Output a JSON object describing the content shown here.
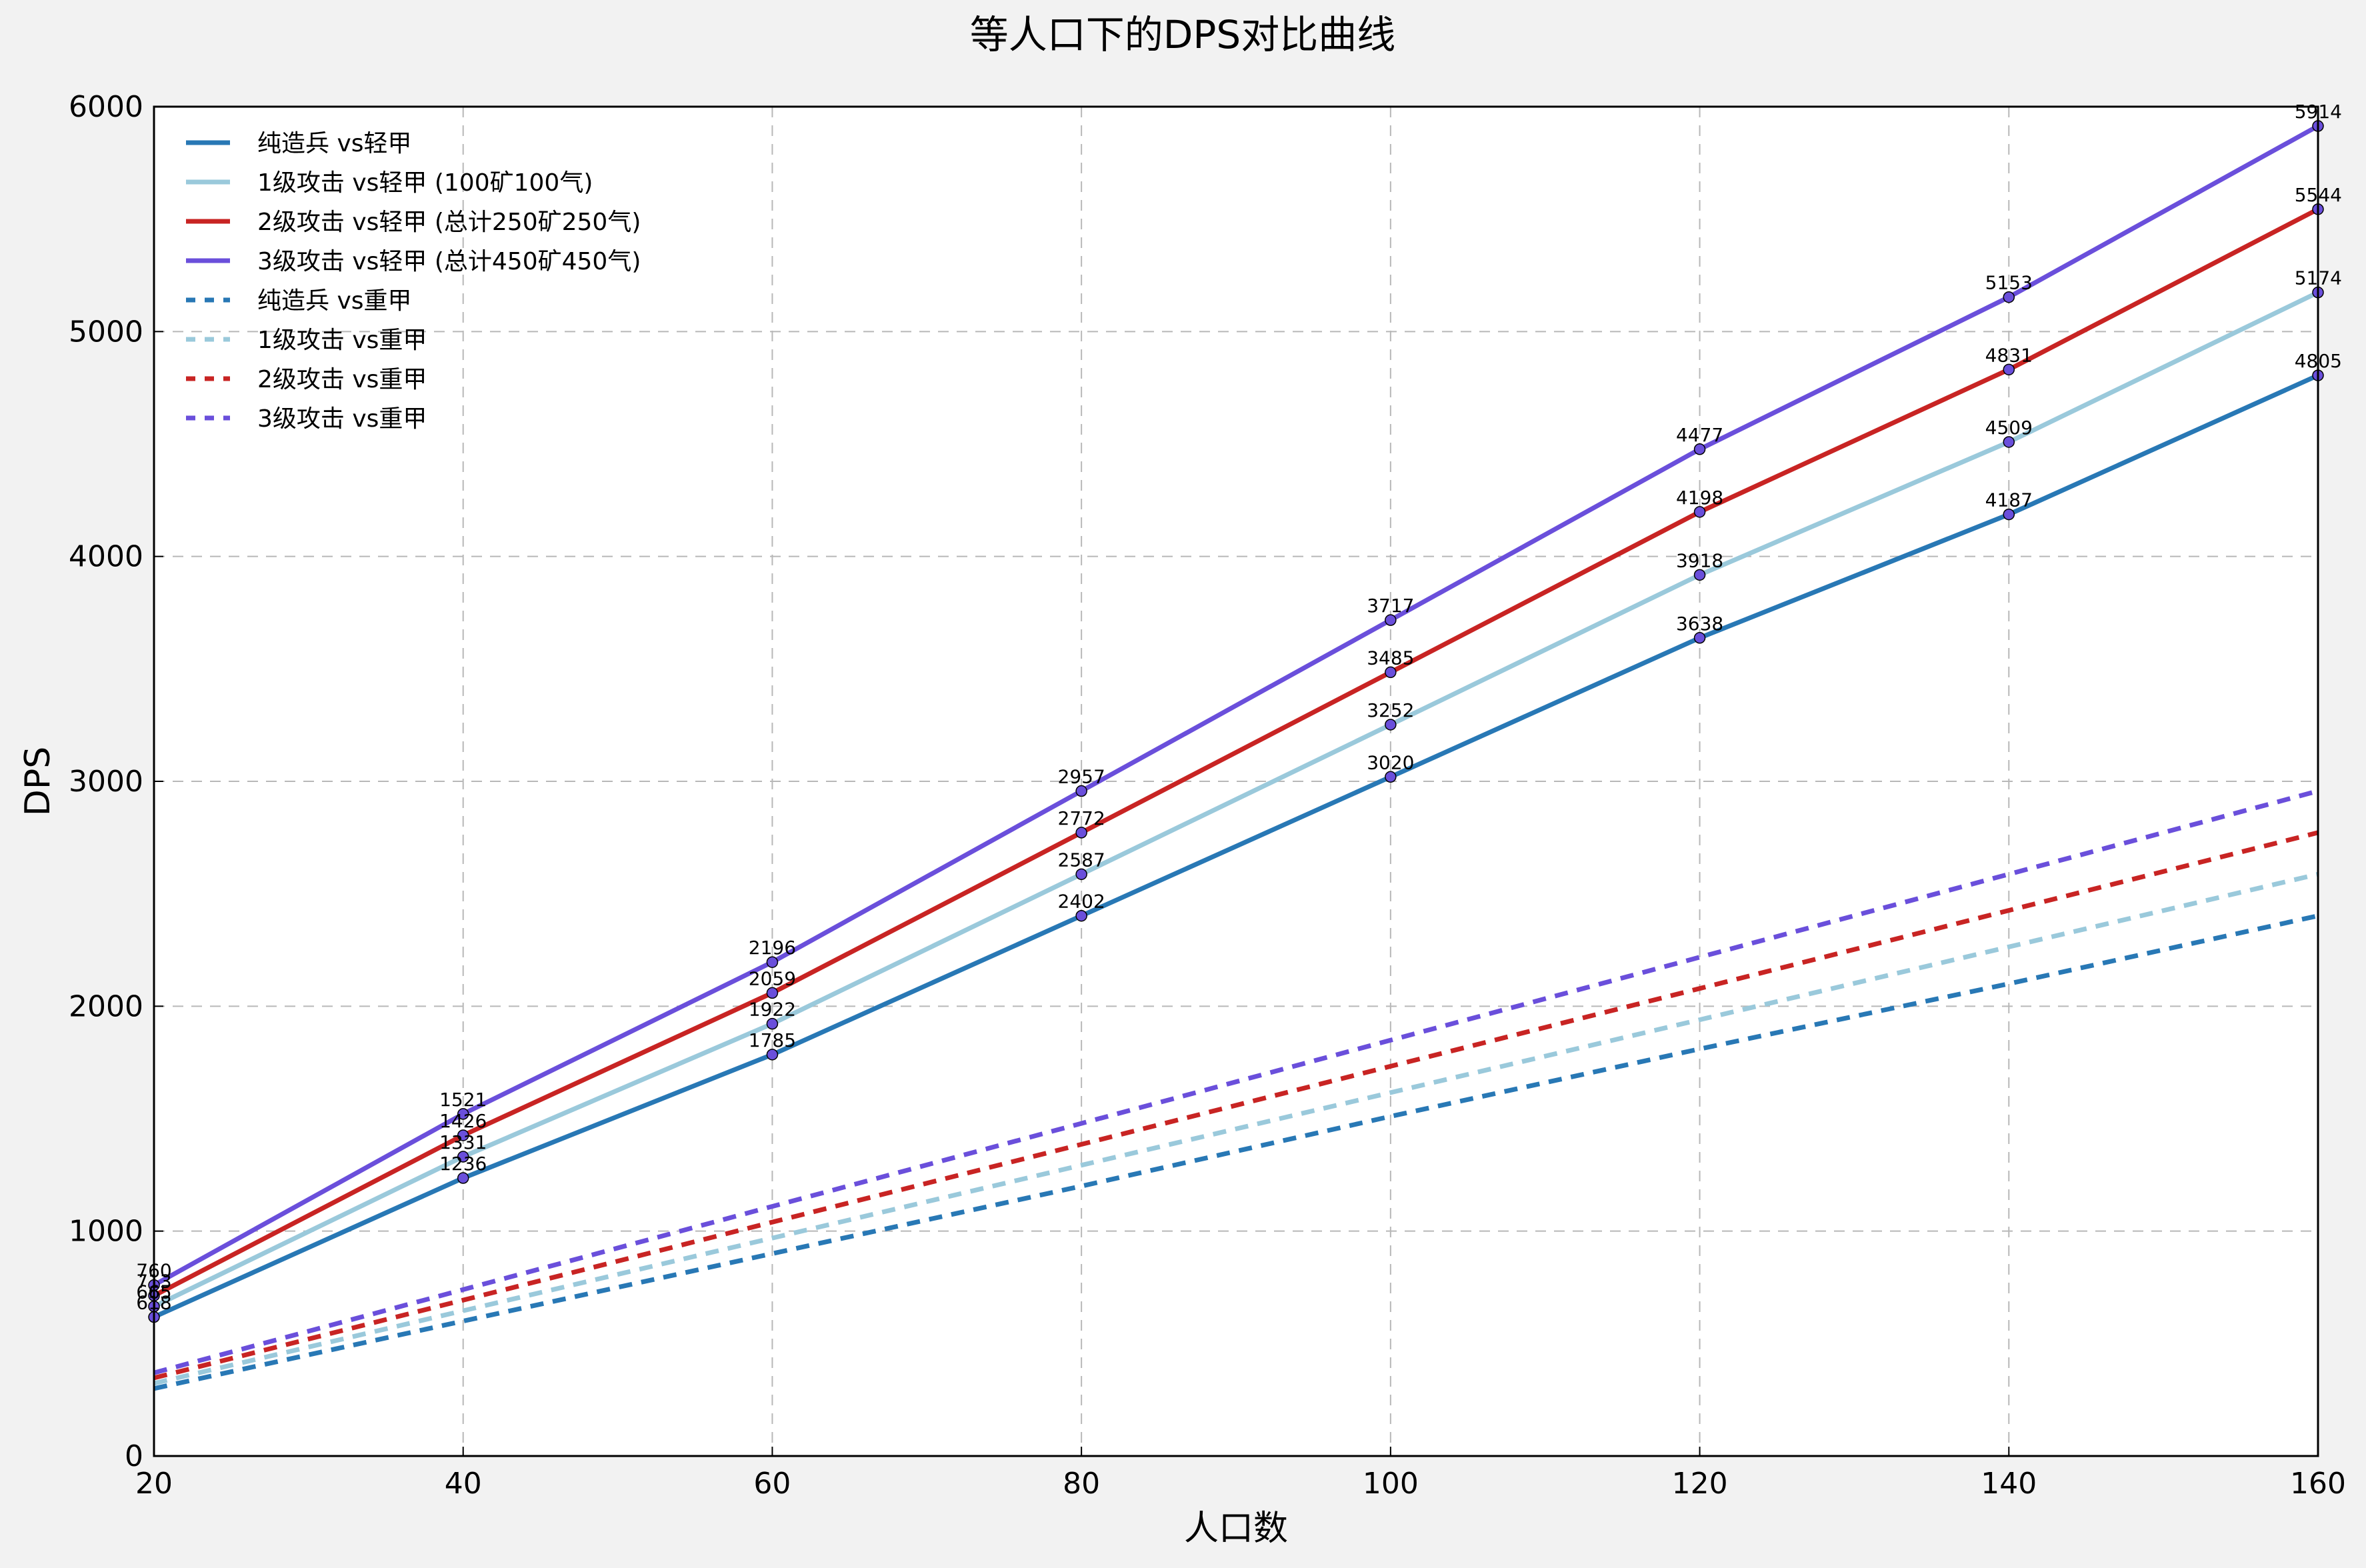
{
  "chart_data": {
    "type": "line",
    "title": "等人口下的DPS对比曲线",
    "xlabel": "人口数",
    "ylabel": "DPS",
    "xlim": [
      20,
      160
    ],
    "ylim": [
      0,
      6000
    ],
    "xticks": [
      "20",
      "40",
      "60",
      "80",
      "100",
      "120",
      "140",
      "160"
    ],
    "yticks": [
      "0",
      "1000",
      "2000",
      "3000",
      "4000",
      "5000",
      "6000"
    ],
    "grid": true,
    "legend_position": "top-left",
    "x": [
      20,
      40,
      60,
      80,
      100,
      120,
      140,
      160
    ],
    "series": [
      {
        "name": "纯造兵 vs轻甲",
        "color": "#2878b5",
        "style": "solid",
        "values": [
          618,
          1236,
          1785,
          2402,
          3020,
          3638,
          4187,
          4805
        ],
        "labels": [
          "618",
          "1236",
          "1785",
          "2402",
          "3020",
          "3638",
          "4187",
          "4805"
        ]
      },
      {
        "name": "1级攻击 vs轻甲 (100矿100气)",
        "color": "#9ac9db",
        "style": "solid",
        "values": [
          665,
          1331,
          1922,
          2587,
          3252,
          3918,
          4509,
          5174
        ],
        "labels": [
          "665",
          "1331",
          "1922",
          "2587",
          "3252",
          "3918",
          "4509",
          "5174"
        ]
      },
      {
        "name": "2级攻击 vs轻甲 (总计250矿250气)",
        "color": "#c82423",
        "style": "solid",
        "values": [
          713,
          1426,
          2059,
          2772,
          3485,
          4198,
          4831,
          5544
        ],
        "labels": [
          "713",
          "1426",
          "2059",
          "2772",
          "3485",
          "4198",
          "4831",
          "5544"
        ]
      },
      {
        "name": "3级攻击 vs轻甲 (总计450矿450气)",
        "color": "#6a4fdb",
        "style": "solid",
        "values": [
          760,
          1521,
          2196,
          2957,
          3717,
          4477,
          5153,
          5914
        ],
        "labels": [
          "760",
          "1521",
          "2196",
          "2957",
          "3717",
          "4477",
          "5153",
          "5914"
        ]
      },
      {
        "name": "纯造兵 vs重甲",
        "color": "#2878b5",
        "style": "dashed",
        "values": [
          300,
          600,
          900,
          1200,
          1510,
          1810,
          2100,
          2402
        ]
      },
      {
        "name": "1级攻击 vs重甲",
        "color": "#9ac9db",
        "style": "dashed",
        "values": [
          323,
          646,
          969,
          1293,
          1616,
          1940,
          2264,
          2587
        ]
      },
      {
        "name": "2级攻击 vs重甲",
        "color": "#c82423",
        "style": "dashed",
        "values": [
          347,
          693,
          1040,
          1386,
          1733,
          2079,
          2426,
          2772
        ]
      },
      {
        "name": "3级攻击 vs重甲",
        "color": "#6a4fdb",
        "style": "dashed",
        "values": [
          370,
          740,
          1110,
          1479,
          1849,
          2218,
          2587,
          2957
        ]
      }
    ]
  }
}
